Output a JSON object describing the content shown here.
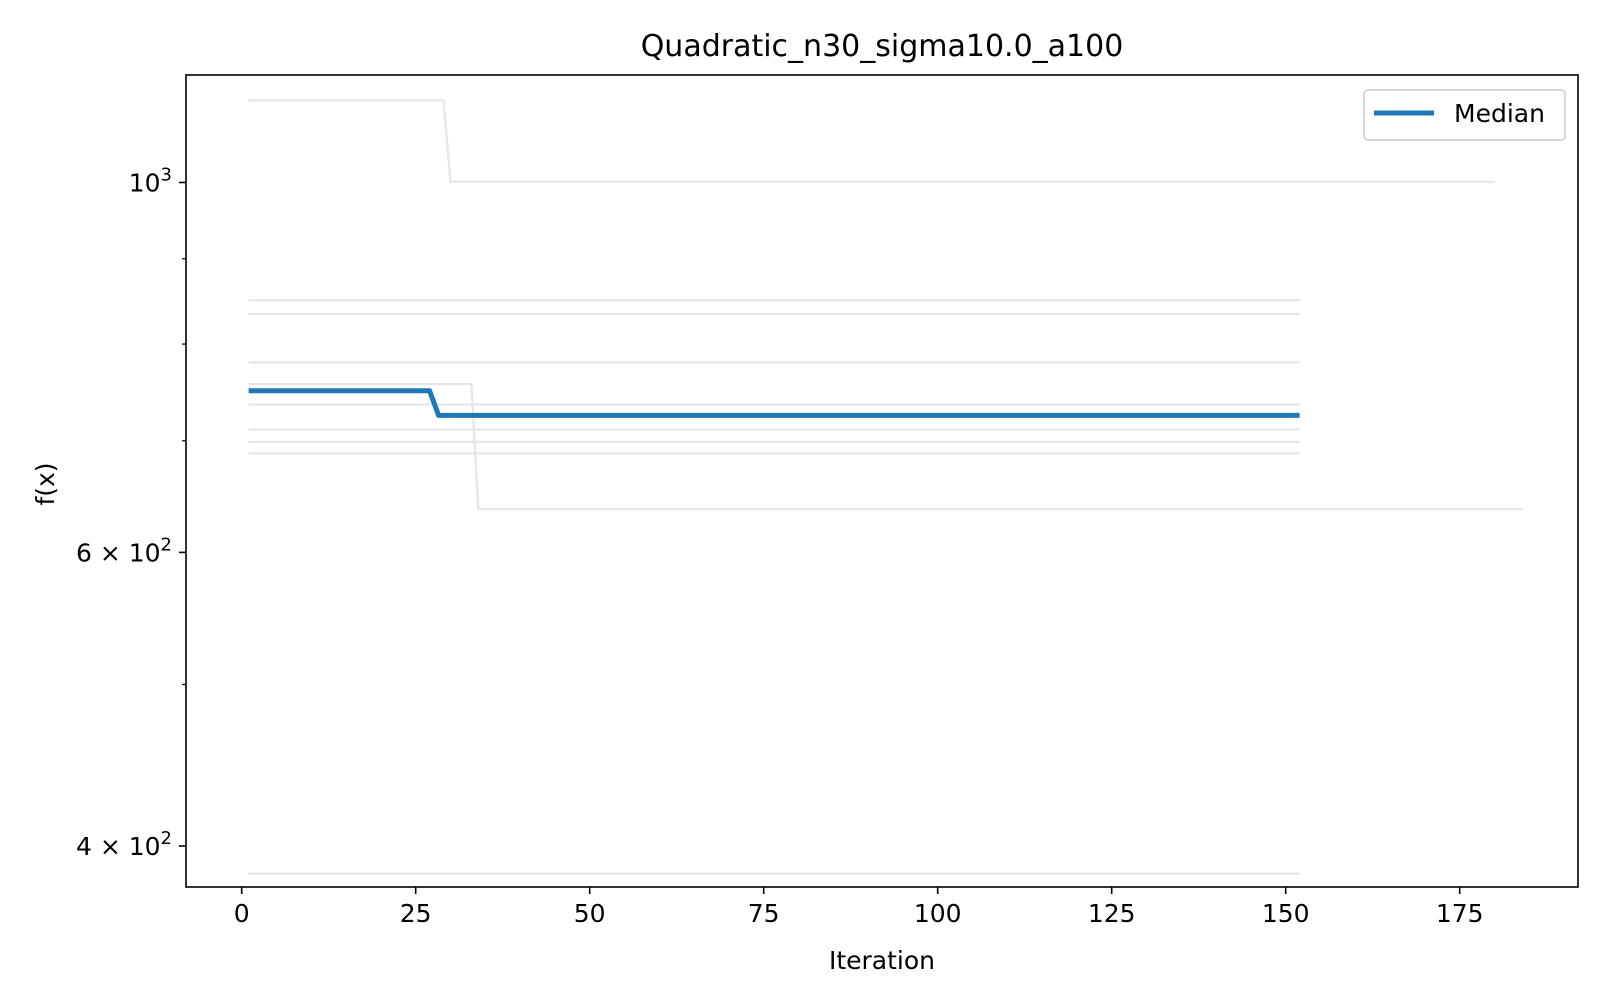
{
  "chart_data": {
    "type": "line",
    "title": "Quadratic_n30_sigma10.0_a100",
    "xlabel": "Iteration",
    "ylabel": "f(x)",
    "xlim": [
      -8,
      192
    ],
    "ylim": [
      378,
      1160
    ],
    "yscale": "log",
    "x_ticks": [
      0,
      25,
      50,
      75,
      100,
      125,
      150,
      175
    ],
    "y_ticks": [
      {
        "value": 400,
        "base": "4 × 10",
        "exp": "2"
      },
      {
        "value": 600,
        "base": "6 × 10",
        "exp": "2"
      },
      {
        "value": 1000,
        "base": "10",
        "exp": "3"
      }
    ],
    "y_minor_ticks": [
      500,
      700,
      800,
      900
    ],
    "legend": {
      "position": "top-right",
      "entries": [
        "Median"
      ]
    },
    "colors": {
      "runs": "#e6e6e6",
      "median": "#1f77b4"
    },
    "series": [
      {
        "name": "Median",
        "x": [
          1,
          27,
          28.3,
          152
        ],
        "y": [
          750,
          750,
          725,
          725
        ]
      },
      {
        "x": [
          1,
          29,
          30,
          180
        ],
        "y": [
          1120,
          1120,
          1001,
          1001
        ]
      },
      {
        "x": [
          1,
          33,
          34,
          184
        ],
        "y": [
          757,
          757,
          637,
          637
        ]
      },
      {
        "x": [
          1,
          152
        ],
        "y": [
          850,
          850
        ]
      },
      {
        "x": [
          1,
          152
        ],
        "y": [
          834,
          834
        ]
      },
      {
        "x": [
          1,
          152
        ],
        "y": [
          780,
          780
        ]
      },
      {
        "x": [
          1,
          152
        ],
        "y": [
          736,
          736
        ]
      },
      {
        "x": [
          1,
          152
        ],
        "y": [
          711,
          711
        ]
      },
      {
        "x": [
          1,
          152
        ],
        "y": [
          699,
          699
        ]
      },
      {
        "x": [
          1,
          152
        ],
        "y": [
          688,
          688
        ]
      },
      {
        "x": [
          1,
          152
        ],
        "y": [
          385,
          385
        ]
      }
    ]
  }
}
